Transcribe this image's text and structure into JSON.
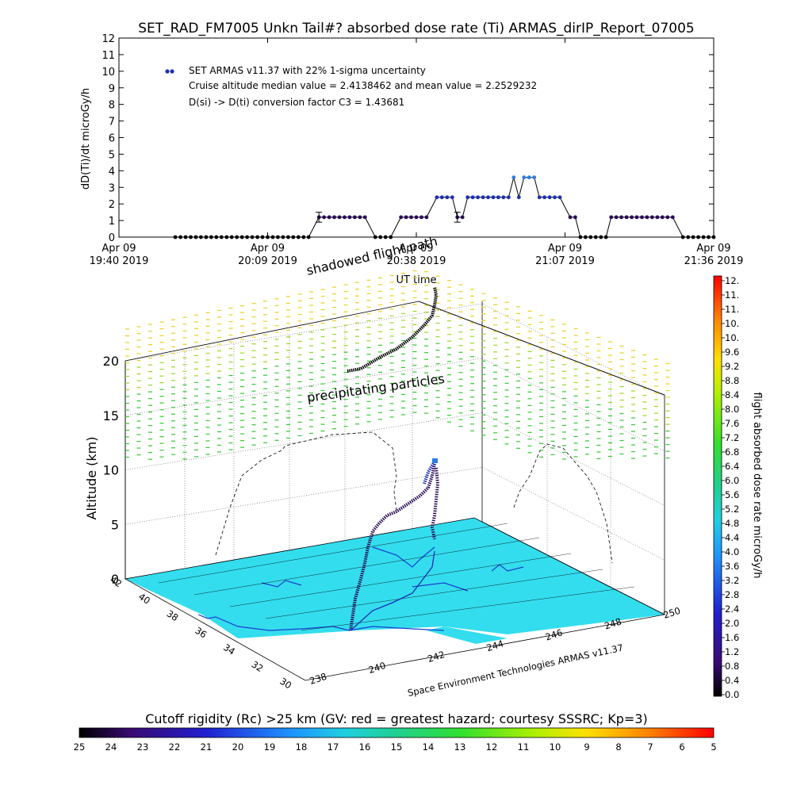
{
  "title": "SET_RAD_FM7005  Unkn Tail#? absorbed dose rate (Ti) ARMAS_dirIP_Report_07005",
  "colors": {
    "line": "#000000",
    "dot_low": "#2a0a55",
    "dot_mid": "#1b2fb5",
    "dot_high": "#2e7de0",
    "ground": "#33ddee",
    "coast": "#1a3fd0",
    "cb_high": "#ff0000",
    "cb_low": "#000000"
  },
  "top_plot": {
    "ylabel": "dD(Ti)/dt microGy/h",
    "xlabel": "UT time",
    "legend": {
      "series": "SET ARMAS v11.37 with 22% 1-sigma uncertainty",
      "line2": "Cruise altitude median value = 2.4138462 and mean value = 2.2529232",
      "line3": "D(si) -> D(ti) conversion factor C3 = 1.43681"
    },
    "x_ticks": [
      {
        "date": "Apr 09",
        "time": "19:40 2019"
      },
      {
        "date": "Apr 09",
        "time": "20:09 2019"
      },
      {
        "date": "Apr 09",
        "time": "20:38 2019"
      },
      {
        "date": "Apr 09",
        "time": "21:07 2019"
      },
      {
        "date": "Apr 09",
        "time": "21:36 2019"
      }
    ],
    "y_ticks": [
      "0",
      "1",
      "2",
      "3",
      "4",
      "5",
      "6",
      "7",
      "8",
      "9",
      "10",
      "11",
      "12"
    ]
  },
  "chart_data": {
    "type": "line",
    "title": "SET_RAD_FM7005  Unkn Tail#? absorbed dose rate (Ti) ARMAS_dirIP_Report_07005",
    "xlabel": "UT time",
    "ylabel": "dD(Ti)/dt microGy/h",
    "x_unit": "minutes after 19:40 UT, Apr 09 2019",
    "xlim": [
      0,
      116
    ],
    "ylim": [
      0,
      12
    ],
    "series": [
      {
        "name": "SET ARMAS v11.37 with 22% 1-sigma uncertainty",
        "points": [
          [
            11,
            0
          ],
          [
            12,
            0
          ],
          [
            13,
            0
          ],
          [
            14,
            0
          ],
          [
            15,
            0
          ],
          [
            16,
            0
          ],
          [
            17,
            0
          ],
          [
            18,
            0
          ],
          [
            19,
            0
          ],
          [
            20,
            0
          ],
          [
            21,
            0
          ],
          [
            22,
            0
          ],
          [
            23,
            0
          ],
          [
            24,
            0
          ],
          [
            25,
            0
          ],
          [
            26,
            0
          ],
          [
            27,
            0
          ],
          [
            28,
            0
          ],
          [
            29,
            0
          ],
          [
            30,
            0
          ],
          [
            31,
            0
          ],
          [
            32,
            0
          ],
          [
            33,
            0
          ],
          [
            34,
            0
          ],
          [
            35,
            0
          ],
          [
            36,
            0
          ],
          [
            37,
            0
          ],
          [
            39,
            1.2
          ],
          [
            40,
            1.2
          ],
          [
            41,
            1.2
          ],
          [
            42,
            1.2
          ],
          [
            43,
            1.2
          ],
          [
            44,
            1.2
          ],
          [
            45,
            1.2
          ],
          [
            46,
            1.2
          ],
          [
            47,
            1.2
          ],
          [
            48,
            1.2
          ],
          [
            50,
            0
          ],
          [
            51,
            0
          ],
          [
            52,
            0
          ],
          [
            53,
            0
          ],
          [
            55,
            1.2
          ],
          [
            56,
            1.2
          ],
          [
            57,
            1.2
          ],
          [
            58,
            1.2
          ],
          [
            59,
            1.2
          ],
          [
            60,
            1.2
          ],
          [
            62,
            2.4
          ],
          [
            63,
            2.4
          ],
          [
            64,
            2.4
          ],
          [
            65,
            2.4
          ],
          [
            66,
            1.2
          ],
          [
            67,
            1.2
          ],
          [
            68,
            2.4
          ],
          [
            69,
            2.4
          ],
          [
            70,
            2.4
          ],
          [
            71,
            2.4
          ],
          [
            72,
            2.4
          ],
          [
            73,
            2.4
          ],
          [
            74,
            2.4
          ],
          [
            75,
            2.4
          ],
          [
            76,
            2.4
          ],
          [
            77,
            3.6
          ],
          [
            78,
            2.4
          ],
          [
            79,
            3.6
          ],
          [
            80,
            3.6
          ],
          [
            81,
            3.6
          ],
          [
            82,
            2.4
          ],
          [
            83,
            2.4
          ],
          [
            84,
            2.4
          ],
          [
            85,
            2.4
          ],
          [
            86,
            2.4
          ],
          [
            88,
            1.2
          ],
          [
            89,
            1.2
          ],
          [
            90,
            0
          ],
          [
            91,
            0
          ],
          [
            92,
            0
          ],
          [
            93,
            0
          ],
          [
            94,
            0
          ],
          [
            95,
            0
          ],
          [
            96,
            1.2
          ],
          [
            97,
            1.2
          ],
          [
            98,
            1.2
          ],
          [
            99,
            1.2
          ],
          [
            100,
            1.2
          ],
          [
            101,
            1.2
          ],
          [
            102,
            1.2
          ],
          [
            103,
            1.2
          ],
          [
            104,
            1.2
          ],
          [
            105,
            1.2
          ],
          [
            106,
            1.2
          ],
          [
            107,
            1.2
          ],
          [
            108,
            1.2
          ],
          [
            110,
            0
          ],
          [
            111,
            0
          ],
          [
            112,
            0
          ],
          [
            113,
            0
          ],
          [
            114,
            0
          ],
          [
            115,
            0
          ],
          [
            116,
            0
          ]
        ],
        "error_bars": [
          {
            "x": 39,
            "y": 1.2,
            "err": 0.3
          },
          {
            "x": 66,
            "y": 1.2,
            "err": 0.3
          }
        ]
      }
    ],
    "scene3d": {
      "type": "3d-trajectory",
      "zlabel": "Altitude (km)",
      "zlim": [
        0,
        20
      ],
      "z_ticks": [
        "0",
        "5",
        "10",
        "15",
        "20"
      ],
      "lat_ticks": [
        "30",
        "32",
        "34",
        "36",
        "38",
        "40",
        "42"
      ],
      "lon_ticks": [
        "238",
        "240",
        "242",
        "244",
        "246",
        "248",
        "250"
      ],
      "annotations": [
        "shadowed flight path",
        "precipitating particles"
      ],
      "credit": "Space Environment Technologies ARMAS v11.37"
    }
  },
  "colorbar_right": {
    "label": "flight absorbed dose rate microGy/h",
    "ticks": [
      "12.",
      "11.",
      "11.",
      "10.",
      "10.",
      "9.6",
      "9.2",
      "8.8",
      "8.4",
      "8.0",
      "7.6",
      "7.2",
      "6.8",
      "6.4",
      "6.0",
      "5.6",
      "5.2",
      "4.8",
      "4.4",
      "4.0",
      "3.6",
      "3.2",
      "2.8",
      "2.4",
      "2.0",
      "1.6",
      "1.2",
      "0.8",
      "0.4",
      "0.0"
    ]
  },
  "colorbar_bottom": {
    "label": "Cutoff rigidity (Rc) >25 km (GV: red = greatest hazard; courtesy SSSRC; Kp=3)",
    "ticks": [
      "25",
      "24",
      "23",
      "22",
      "21",
      "20",
      "19",
      "18",
      "17",
      "16",
      "15",
      "14",
      "13",
      "12",
      "11",
      "10",
      "9",
      "8",
      "7",
      "6",
      "5"
    ]
  }
}
